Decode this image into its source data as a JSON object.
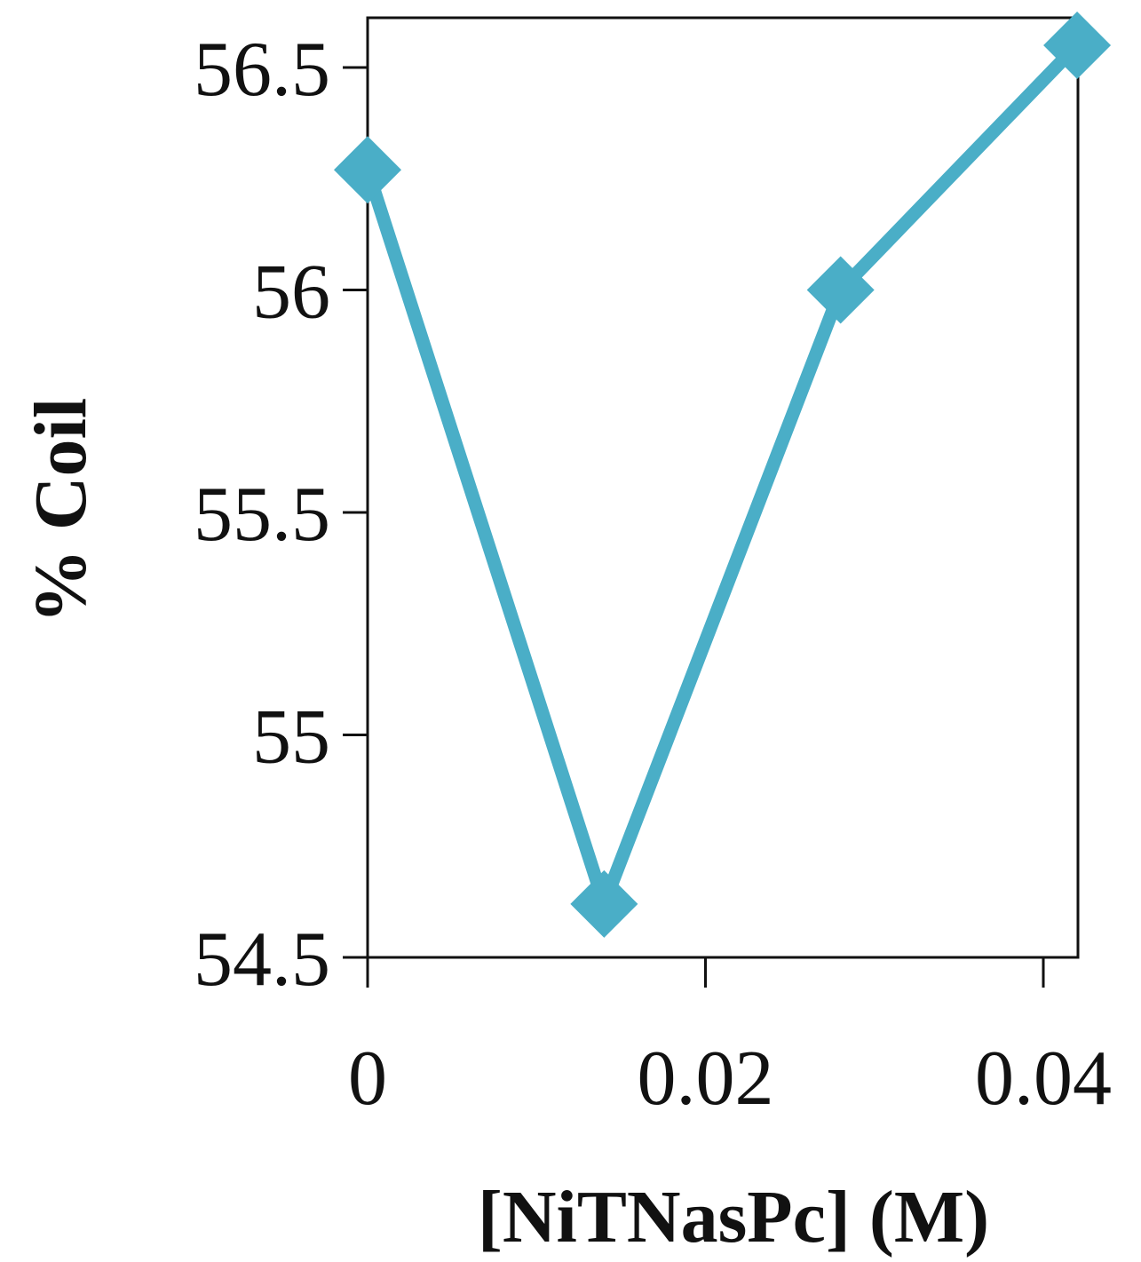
{
  "chart_data": {
    "type": "line",
    "title": "",
    "xlabel": "[NiTNasPc] (M)",
    "ylabel": "% Coil",
    "xlim": [
      0,
      0.042
    ],
    "ylim": [
      54.5,
      56.6
    ],
    "xticks": [
      0,
      0.02,
      0.04
    ],
    "xtick_labels": [
      "0",
      "0.02",
      "0.04"
    ],
    "yticks": [
      54.5,
      55,
      55.5,
      56,
      56.5
    ],
    "ytick_labels": [
      "54.5",
      "55",
      "55.5",
      "56",
      "56.5"
    ],
    "grid": false,
    "legend": "none",
    "series": [
      {
        "marker": "diamond",
        "color": "#4aaec7",
        "x": [
          0,
          0.014,
          0.028,
          0.042
        ],
        "y": [
          56.27,
          54.62,
          56.0,
          56.55
        ]
      }
    ]
  }
}
